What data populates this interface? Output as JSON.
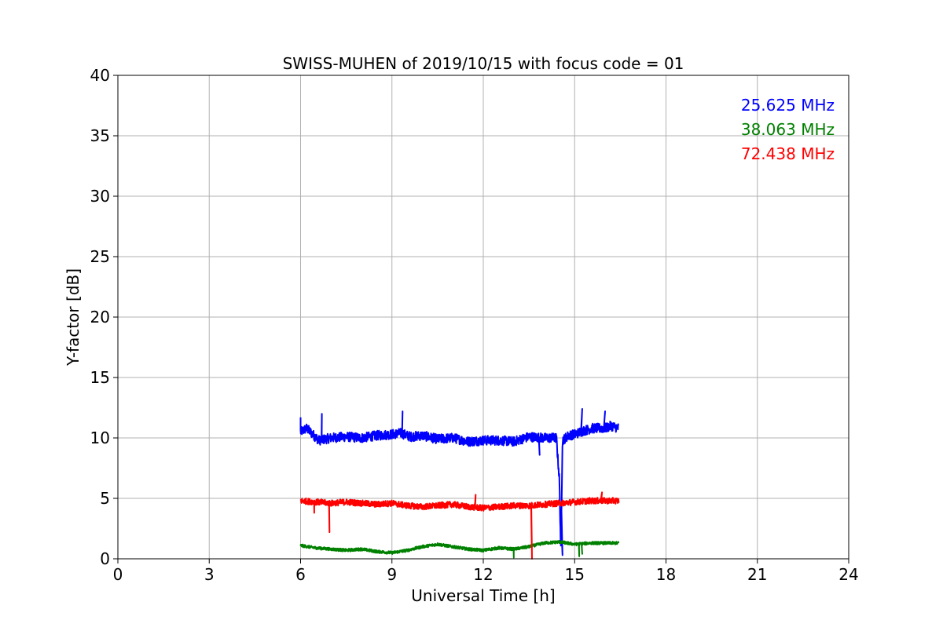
{
  "chart_data": {
    "type": "line",
    "title": "SWISS-MUHEN of 2019/10/15 with focus code = 01",
    "xlabel": "Universal Time [h]",
    "ylabel": "Y-factor [dB]",
    "xlim": [
      0,
      24
    ],
    "ylim": [
      0,
      40
    ],
    "xticks": [
      0,
      3,
      6,
      9,
      12,
      15,
      18,
      21,
      24
    ],
    "yticks": [
      0,
      5,
      10,
      15,
      20,
      25,
      30,
      35,
      40
    ],
    "xtick_labels": [
      "0",
      "3",
      "6",
      "9",
      "12",
      "15",
      "18",
      "21",
      "24"
    ],
    "ytick_labels": [
      "0",
      "5",
      "10",
      "15",
      "20",
      "25",
      "30",
      "35",
      "40"
    ],
    "grid": true,
    "legend_position": "top-right",
    "series": [
      {
        "name": "25.625 MHz",
        "color": "#0000ff",
        "x": [
          6.0,
          6.2,
          6.4,
          6.6,
          7.0,
          7.5,
          8.0,
          8.5,
          9.0,
          9.3,
          9.6,
          10.0,
          10.5,
          11.0,
          11.5,
          12.0,
          12.5,
          13.0,
          13.5,
          14.0,
          14.4,
          14.5,
          14.55,
          14.6,
          14.8,
          15.0,
          15.3,
          15.6,
          16.0,
          16.2,
          16.45
        ],
        "y": [
          10.5,
          10.8,
          10.3,
          9.8,
          10.0,
          10.1,
          10.0,
          10.2,
          10.3,
          10.4,
          10.1,
          10.2,
          9.9,
          10.0,
          9.7,
          9.8,
          9.8,
          9.7,
          10.1,
          10.0,
          10.0,
          6.5,
          0.3,
          9.8,
          10.2,
          10.3,
          10.6,
          10.8,
          10.8,
          11.0,
          10.8
        ],
        "noise": 0.4,
        "spikes": [
          [
            6.0,
            11.7
          ],
          [
            6.7,
            12.0
          ],
          [
            9.35,
            12.2
          ],
          [
            13.85,
            8.6
          ],
          [
            14.6,
            0.3
          ],
          [
            15.25,
            12.4
          ],
          [
            16.0,
            12.2
          ]
        ]
      },
      {
        "name": "38.063 MHz",
        "color": "#008000",
        "x": [
          6.0,
          6.5,
          7.0,
          7.5,
          8.0,
          8.5,
          9.0,
          9.5,
          10.0,
          10.5,
          11.0,
          11.5,
          12.0,
          12.5,
          13.0,
          13.5,
          14.0,
          14.5,
          15.0,
          15.5,
          16.0,
          16.45
        ],
        "y": [
          1.1,
          0.9,
          0.8,
          0.7,
          0.8,
          0.6,
          0.5,
          0.7,
          1.0,
          1.2,
          1.0,
          0.8,
          0.7,
          0.9,
          0.8,
          1.0,
          1.3,
          1.4,
          1.2,
          1.3,
          1.3,
          1.3
        ],
        "noise": 0.12,
        "spikes": [
          [
            13.0,
            0.1
          ],
          [
            15.15,
            0.2
          ],
          [
            15.25,
            0.4
          ]
        ]
      },
      {
        "name": "72.438 MHz",
        "color": "#ff0000",
        "x": [
          6.0,
          6.5,
          7.0,
          7.5,
          8.0,
          8.5,
          9.0,
          9.5,
          10.0,
          10.5,
          11.0,
          11.5,
          12.0,
          12.5,
          13.0,
          13.5,
          14.0,
          14.5,
          15.0,
          15.5,
          16.0,
          16.45
        ],
        "y": [
          4.8,
          4.7,
          4.6,
          4.7,
          4.6,
          4.5,
          4.6,
          4.4,
          4.3,
          4.4,
          4.5,
          4.3,
          4.2,
          4.3,
          4.4,
          4.4,
          4.5,
          4.6,
          4.7,
          4.8,
          4.8,
          4.8
        ],
        "noise": 0.25,
        "spikes": [
          [
            6.45,
            3.8
          ],
          [
            6.95,
            2.2
          ],
          [
            11.75,
            5.3
          ],
          [
            13.6,
            0.0
          ],
          [
            15.9,
            5.5
          ]
        ]
      }
    ]
  }
}
